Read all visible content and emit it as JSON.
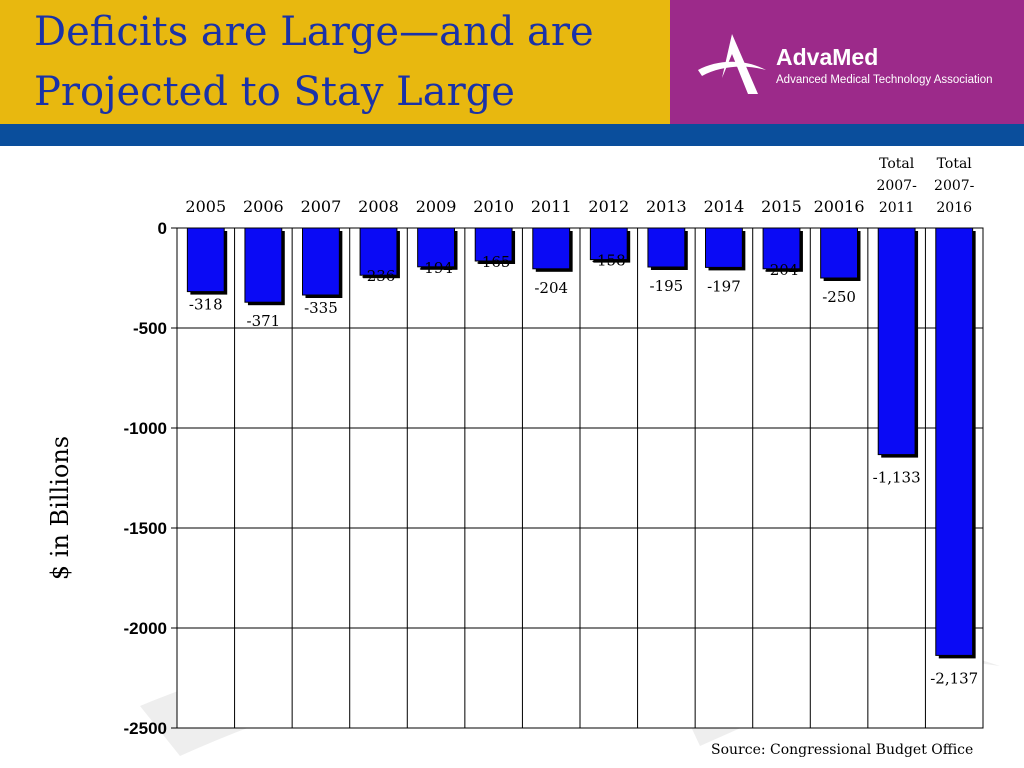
{
  "header": {
    "title_line1": "Deficits are Large—and are",
    "title_line2": "Projected to Stay Large",
    "logo_name": "AdvaMed",
    "logo_subtitle": "Advanced Medical Technology Association"
  },
  "source": "Source: Congressional Budget Office",
  "colors": {
    "header_gold": "#E8B80F",
    "header_purple": "#9C2A8A",
    "header_bar": "#0A4E9C",
    "title_blue": "#1a32a8",
    "bar_fill": "#0A0AF5",
    "bar_shadow": "#000000"
  },
  "chart_data": {
    "type": "bar",
    "categories": [
      [
        "2005"
      ],
      [
        "2006"
      ],
      [
        "2007"
      ],
      [
        "2008"
      ],
      [
        "2009"
      ],
      [
        "2010"
      ],
      [
        "2011"
      ],
      [
        "2012"
      ],
      [
        "2013"
      ],
      [
        "2014"
      ],
      [
        "2015"
      ],
      [
        "20016"
      ],
      [
        "Total",
        "2007-",
        "2011"
      ],
      [
        "Total",
        "2007-",
        "2016"
      ]
    ],
    "values": [
      -318,
      -371,
      -335,
      -236,
      -194,
      -165,
      -204,
      -158,
      -195,
      -197,
      -204,
      -250,
      -1133,
      -2137
    ],
    "data_labels": [
      "-318",
      "-371",
      "-335",
      "-236",
      "-194",
      "-165",
      "-204",
      "-158",
      "-195",
      "-197",
      "-204",
      "-250",
      "-1,133",
      "-2,137"
    ],
    "ylabel": "$ in Billions",
    "ylim": [
      -2500,
      0
    ],
    "yticks": [
      0,
      -500,
      -1000,
      -1500,
      -2000,
      -2500
    ],
    "ytick_labels": [
      "0",
      "-500",
      "-1000",
      "-1500",
      "-2000",
      "-2500"
    ],
    "grid": true,
    "category_axis_position": "top"
  }
}
